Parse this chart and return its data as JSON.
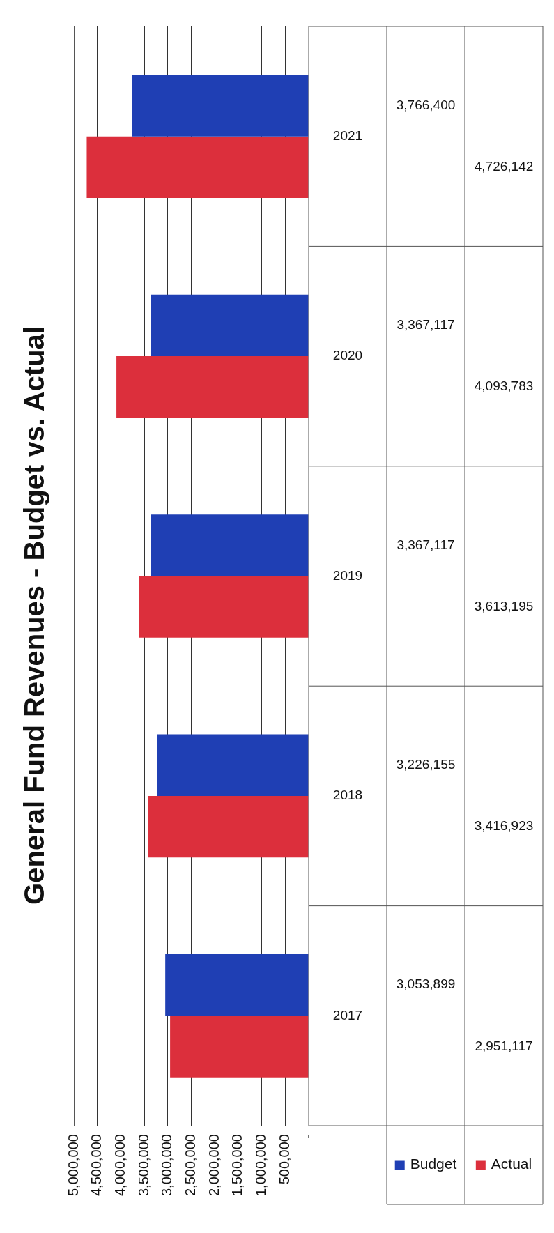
{
  "chart_data": {
    "type": "bar",
    "orientation": "horizontal",
    "title": "General Fund Revenues - Budget vs. Actual",
    "categories": [
      "2021",
      "2020",
      "2019",
      "2018",
      "2017"
    ],
    "series": [
      {
        "name": "Budget",
        "color": "#1f3fb4",
        "values": [
          3766400,
          3367117,
          3367117,
          3226155,
          3053899
        ],
        "value_labels": [
          "3,766,400",
          "3,367,117",
          "3,367,117",
          "3,226,155",
          "3,053,899"
        ]
      },
      {
        "name": "Actual",
        "color": "#dc2f3c",
        "values": [
          4726142,
          4093783,
          3613195,
          3416923,
          2951117
        ],
        "value_labels": [
          "4,726,142",
          "4,093,783",
          "3,613,195",
          "3,416,923",
          "2,951,117"
        ]
      }
    ],
    "xlim": [
      5000000,
      0
    ],
    "xticks": [
      {
        "value": 0,
        "label": "-"
      },
      {
        "value": 500000,
        "label": "500,000"
      },
      {
        "value": 1000000,
        "label": "1,000,000"
      },
      {
        "value": 1500000,
        "label": "1,500,000"
      },
      {
        "value": 2000000,
        "label": "2,000,000"
      },
      {
        "value": 2500000,
        "label": "2,500,000"
      },
      {
        "value": 3000000,
        "label": "3,000,000"
      },
      {
        "value": 3500000,
        "label": "3,500,000"
      },
      {
        "value": 4000000,
        "label": "4,000,000"
      },
      {
        "value": 4500000,
        "label": "4,500,000"
      },
      {
        "value": 5000000,
        "label": "5,000,000"
      }
    ],
    "grid": "x",
    "legend": "bottom"
  }
}
